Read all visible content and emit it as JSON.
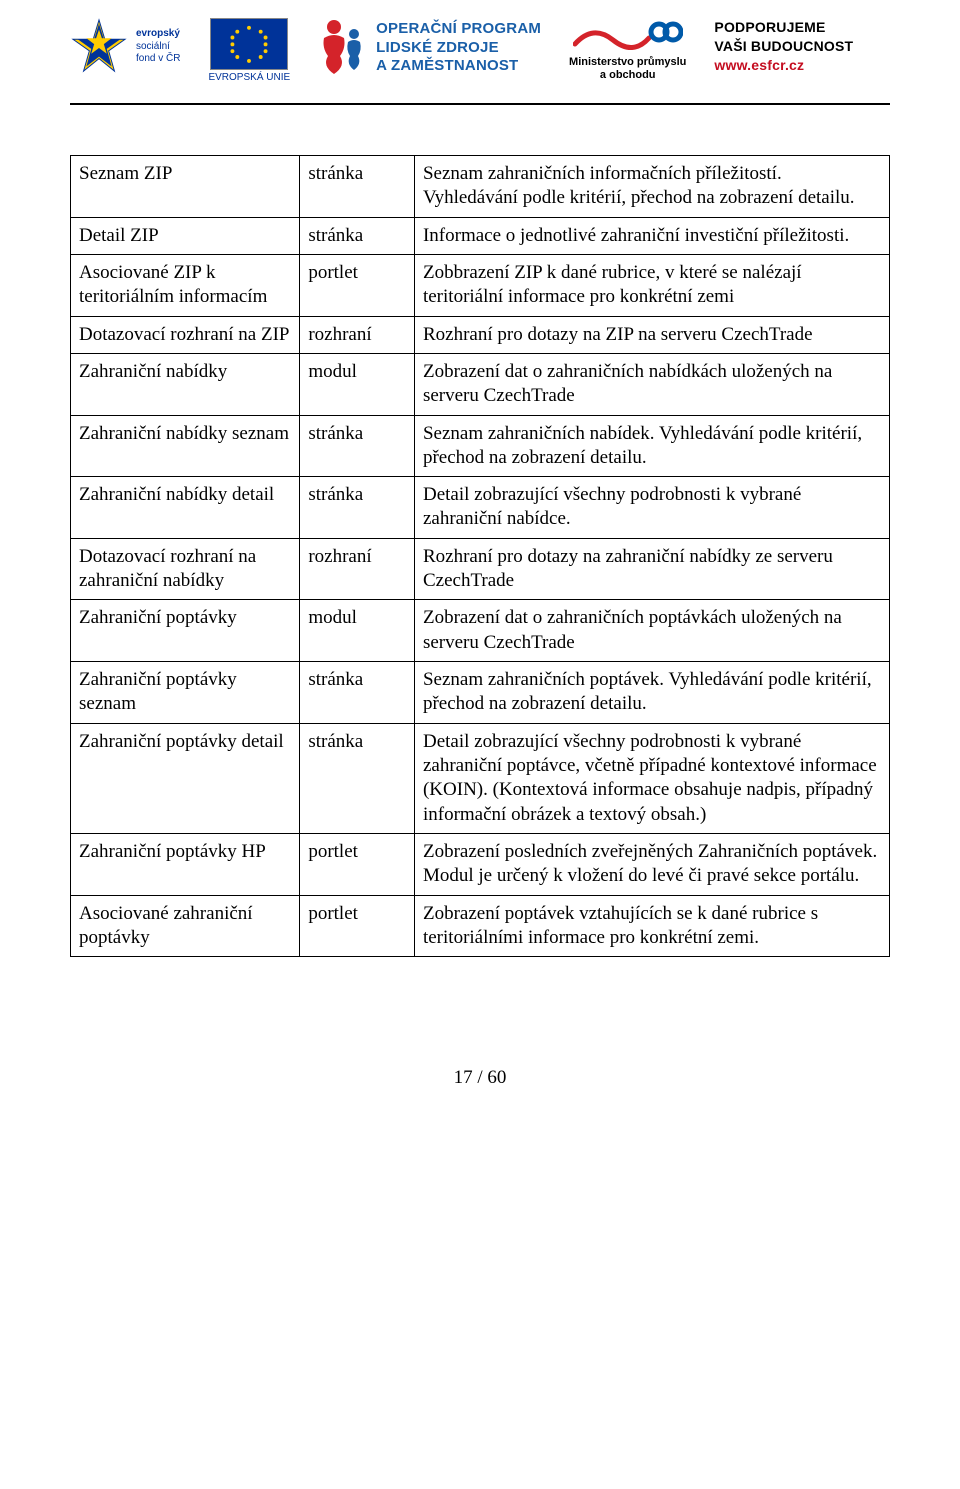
{
  "header": {
    "esf": {
      "line1": "evropský",
      "line2": "sociální",
      "line3": "fond v ČR"
    },
    "eu_label": "EVROPSKÁ UNIE",
    "op": {
      "line1": "OPERAČNÍ PROGRAM",
      "line2": "LIDSKÉ ZDROJE",
      "line3": "A ZAMĚSTNANOST"
    },
    "mpo": {
      "line1": "Ministerstvo průmyslu",
      "line2": "a obchodu"
    },
    "support": {
      "line1": "PODPORUJEME",
      "line2": "VAŠI BUDOUCNOST",
      "url": "www.esfcr.cz"
    }
  },
  "colors": {
    "eu_blue": "#003399",
    "eu_yellow": "#ffcc00",
    "op_blue": "#1a5fa8",
    "op_red": "#d4232a",
    "mpo_red": "#d4232a",
    "mpo_blue": "#005aa9",
    "link_red": "#c40d20",
    "text": "#000000",
    "border": "#000000"
  },
  "table": {
    "typography": {
      "font_family": "Times New Roman",
      "font_size_pt": 12,
      "line_height": 1.28
    },
    "column_widths_pct": [
      28,
      14,
      58
    ],
    "rows": [
      {
        "name": "Seznam ZIP",
        "type": "stránka",
        "desc": "Seznam zahraničních informačních příležitostí. Vyhledávání podle kritérií, přechod na zobrazení detailu."
      },
      {
        "name": "Detail ZIP",
        "type": "stránka",
        "desc": "Informace o jednotlivé zahraniční investiční příležitosti."
      },
      {
        "name": "Asociované ZIP k teritoriálním informacím",
        "type": "portlet",
        "desc": "Zobbrazení ZIP k dané rubrice, v které se nalézají teritoriální informace pro konkrétní zemi"
      },
      {
        "name": "Dotazovací rozhraní na ZIP",
        "type": "rozhraní",
        "desc": "Rozhraní pro dotazy na ZIP na serveru CzechTrade"
      },
      {
        "name": "Zahraniční nabídky",
        "type": "modul",
        "desc": "Zobrazení dat o zahraničních nabídkách uložených na serveru CzechTrade"
      },
      {
        "name": "Zahraniční nabídky seznam",
        "type": "stránka",
        "desc": "Seznam zahraničních nabídek. Vyhledávání podle kritérií, přechod na zobrazení detailu."
      },
      {
        "name": "Zahraniční nabídky detail",
        "type": "stránka",
        "desc": "Detail zobrazující všechny podrobnosti k vybrané zahraniční nabídce."
      },
      {
        "name": "Dotazovací rozhraní na zahraniční nabídky",
        "type": "rozhraní",
        "desc": "Rozhraní pro dotazy na zahraniční nabídky ze serveru CzechTrade"
      },
      {
        "name": "Zahraniční poptávky",
        "type": "modul",
        "desc": "Zobrazení dat o zahraničních poptávkách uložených na serveru CzechTrade"
      },
      {
        "name": "Zahraniční poptávky seznam",
        "type": "stránka",
        "desc": "Seznam zahraničních poptávek. Vyhledávání podle kritérií, přechod na zobrazení detailu."
      },
      {
        "name": "Zahraniční poptávky detail",
        "type": "stránka",
        "desc": "Detail zobrazující všechny podrobnosti k vybrané zahraniční poptávce, včetně případné kontextové informace (KOIN). (Kontextová informace obsahuje nadpis, případný informační obrázek a textový obsah.)"
      },
      {
        "name": "Zahraniční poptávky HP",
        "type": "portlet",
        "desc": "Zobrazení posledních zveřejněných Zahraničních poptávek. Modul je určený k vložení do levé či pravé sekce portálu."
      },
      {
        "name": "Asociované zahraniční poptávky",
        "type": "portlet",
        "desc": "Zobrazení poptávek vztahujících se k dané rubrice s teritoriálními informace pro konkrétní zemi."
      }
    ]
  },
  "footer": {
    "page": "17 / 60"
  }
}
